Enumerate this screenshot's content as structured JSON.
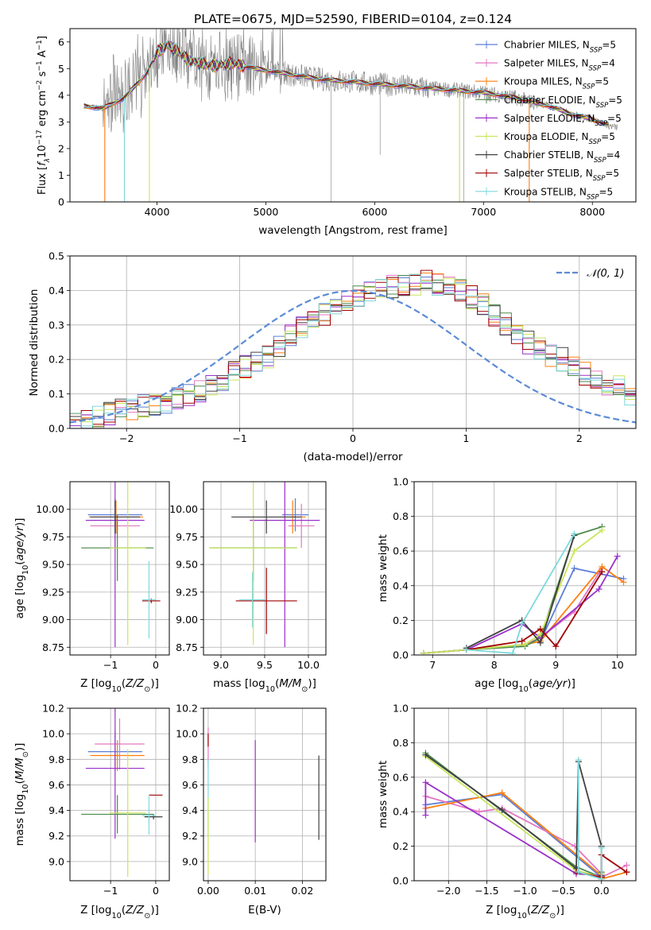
{
  "figure": {
    "title": "PLATE=0675, MJD=52590, FIBERID=0104, z=0.124"
  },
  "legend_entries": [
    {
      "prefix": "Chabrier MILES, N",
      "sub": "SSP",
      "suffix": "=5",
      "color": "#5b7fd6"
    },
    {
      "prefix": "Salpeter MILES, N",
      "sub": "SSP",
      "suffix": "=4",
      "color": "#e377c2"
    },
    {
      "prefix": "Kroupa MILES, N",
      "sub": "SSP",
      "suffix": "=5",
      "color": "#ff7f0e"
    },
    {
      "prefix": "Chabrier ELODIE, N",
      "sub": "SSP",
      "suffix": "=5",
      "color": "#4c8a4c"
    },
    {
      "prefix": "Salpeter ELODIE, N",
      "sub": "SSP",
      "suffix": "=5",
      "color": "#9b30c9"
    },
    {
      "prefix": "Kroupa ELODIE, N",
      "sub": "SSP",
      "suffix": "=5",
      "color": "#c8e65a"
    },
    {
      "prefix": "Chabrier STELIB, N",
      "sub": "SSP",
      "suffix": "=4",
      "color": "#404040"
    },
    {
      "prefix": "Salpeter STELIB, N",
      "sub": "SSP",
      "suffix": "=5",
      "color": "#a00000"
    },
    {
      "prefix": "Kroupa STELIB, N",
      "sub": "SSP",
      "suffix": "=5",
      "color": "#7fd8dc"
    }
  ],
  "chart_data": [
    {
      "type": "line",
      "id": "spectrum",
      "xlabel": "wavelength [Angstrom, rest frame]",
      "ylabel": "Flux [fλ10⁻¹⁷ erg cm⁻² s⁻¹ A⁻¹]",
      "xlim": [
        3200,
        8400
      ],
      "ylim": [
        0,
        6.5
      ],
      "xticks": [
        4000,
        5000,
        6000,
        7000,
        8000
      ],
      "yticks": [
        0,
        1,
        2,
        3,
        4,
        5,
        6
      ],
      "grid": false,
      "legend": "top-right",
      "data_color": "#808080",
      "continuum": {
        "x": [
          3330,
          3500,
          3700,
          3900,
          4000,
          4100,
          4300,
          4500,
          4700,
          4900,
          5200,
          5500,
          5800,
          6100,
          6400,
          6700,
          7000,
          7300,
          7600,
          7800,
          8000,
          8200
        ],
        "y": [
          3.6,
          3.5,
          3.9,
          4.8,
          5.6,
          5.9,
          5.3,
          5.1,
          5.2,
          5.0,
          4.8,
          4.6,
          4.5,
          4.4,
          4.3,
          4.2,
          4.1,
          3.9,
          3.6,
          3.3,
          3.1,
          2.8
        ]
      },
      "absorption_features": [
        {
          "x": 3520,
          "depth": 1.0
        },
        {
          "x": 3700,
          "depth": 1.0
        },
        {
          "x": 3930,
          "depth": 1.0
        },
        {
          "x": 5600,
          "depth": 1.0
        },
        {
          "x": 6050,
          "depth": 0.6
        },
        {
          "x": 6780,
          "depth": 1.0
        },
        {
          "x": 6820,
          "depth": 1.0
        },
        {
          "x": 7420,
          "depth": 1.0
        }
      ]
    },
    {
      "type": "histogram",
      "id": "residuals",
      "xlabel": "(data-model)/error",
      "ylabel": "Normed distribution",
      "xlim": [
        -2.5,
        2.5
      ],
      "ylim": [
        0,
        0.5
      ],
      "xticks": [
        -2,
        -1,
        0,
        1,
        2
      ],
      "yticks": [
        0.0,
        0.1,
        0.2,
        0.3,
        0.4,
        0.5
      ],
      "grid": true,
      "legend": "top-right",
      "reference_curve": {
        "label": "𝒩(0, 1)",
        "color": "#5b8bd6"
      },
      "bin_edges_start": -2.5,
      "bin_width": 0.1,
      "envelope": [
        0.02,
        0.03,
        0.035,
        0.045,
        0.055,
        0.06,
        0.065,
        0.07,
        0.075,
        0.085,
        0.1,
        0.11,
        0.12,
        0.14,
        0.16,
        0.18,
        0.19,
        0.21,
        0.24,
        0.27,
        0.29,
        0.31,
        0.33,
        0.35,
        0.37,
        0.38,
        0.4,
        0.4,
        0.41,
        0.42,
        0.42,
        0.43,
        0.42,
        0.41,
        0.4,
        0.38,
        0.36,
        0.33,
        0.3,
        0.27,
        0.25,
        0.23,
        0.21,
        0.2,
        0.18,
        0.16,
        0.14,
        0.13,
        0.12,
        0.1,
        0.09,
        0.085,
        0.08,
        0.075,
        0.07,
        0.065,
        0.06,
        0.055,
        0.05,
        0.045
      ]
    },
    {
      "type": "scatter",
      "id": "age_vs_Z",
      "xlabel": "Z [log10(Z/Z⊙)]",
      "ylabel": "age  [log10(age/yr)]",
      "xlim": [
        -1.9,
        0.3
      ],
      "ylim": [
        8.68,
        10.25
      ],
      "xticks": [
        -1,
        0
      ],
      "yticks": [
        8.75,
        9.0,
        9.25,
        9.5,
        9.75,
        10.0
      ],
      "grid": true,
      "points": [
        {
          "x": -0.9,
          "y": 9.95,
          "xerr": 0.6,
          "yerr": 0.15,
          "series": 0
        },
        {
          "x": -0.9,
          "y": 9.85,
          "xerr": 0.55,
          "yerr": 0.2,
          "series": 1
        },
        {
          "x": -0.88,
          "y": 9.93,
          "xerr": 0.6,
          "yerr": 0.15,
          "series": 2
        },
        {
          "x": -0.85,
          "y": 9.65,
          "xerr": 0.8,
          "yerr": 0.3,
          "series": 3
        },
        {
          "x": -0.9,
          "y": 9.9,
          "xerr": 0.65,
          "yerr": 1.15,
          "series": 4
        },
        {
          "x": -0.62,
          "y": 9.65,
          "xerr": 0.4,
          "yerr": 0.88,
          "series": 5
        },
        {
          "x": -0.9,
          "y": 9.93,
          "xerr": 0.55,
          "yerr": 0.15,
          "series": 6
        },
        {
          "x": -0.1,
          "y": 9.17,
          "xerr": 0.2,
          "yerr": 0.02,
          "series": 7
        },
        {
          "x": -0.15,
          "y": 9.18,
          "xerr": 0.15,
          "yerr": 0.35,
          "series": 8
        }
      ]
    },
    {
      "type": "scatter",
      "id": "age_vs_mass",
      "xlabel": "mass [log10(M/M⊙)]",
      "ylabel": "",
      "xlim": [
        8.8,
        10.2
      ],
      "ylim": [
        8.68,
        10.25
      ],
      "xticks": [
        9.0,
        9.5,
        10.0
      ],
      "yticks": [
        8.75,
        9.0,
        9.25,
        9.5,
        9.75,
        10.0
      ],
      "grid": true,
      "points": [
        {
          "x": 9.85,
          "y": 9.95,
          "xerr": 0.15,
          "yerr": 0.15,
          "series": 0
        },
        {
          "x": 9.92,
          "y": 9.85,
          "xerr": 0.15,
          "yerr": 0.2,
          "series": 1
        },
        {
          "x": 9.82,
          "y": 9.93,
          "xerr": 0.15,
          "yerr": 0.15,
          "series": 2
        },
        {
          "x": 9.37,
          "y": 9.65,
          "xerr": 0.5,
          "yerr": 0.3,
          "series": 3
        },
        {
          "x": 9.73,
          "y": 9.9,
          "xerr": 0.4,
          "yerr": 1.15,
          "series": 4
        },
        {
          "x": 9.37,
          "y": 9.65,
          "xerr": 0.5,
          "yerr": 0.88,
          "series": 5
        },
        {
          "x": 9.52,
          "y": 9.93,
          "xerr": 0.4,
          "yerr": 0.15,
          "series": 6
        },
        {
          "x": 9.52,
          "y": 9.17,
          "xerr": 0.35,
          "yerr": 0.3,
          "series": 7
        },
        {
          "x": 9.36,
          "y": 9.18,
          "xerr": 0.15,
          "yerr": 0.25,
          "series": 8
        }
      ]
    },
    {
      "type": "line",
      "id": "weight_vs_age",
      "xlabel": "age  [log10(age/yr)]",
      "ylabel": "mass weight",
      "xlim": [
        6.7,
        10.3
      ],
      "ylim": [
        0.0,
        1.0
      ],
      "xticks": [
        7,
        8,
        9,
        10
      ],
      "yticks": [
        0.0,
        0.2,
        0.4,
        0.6,
        0.8,
        1.0
      ],
      "grid": true,
      "series": [
        {
          "x": [
            6.85,
            7.55,
            8.5,
            8.75,
            9.3,
            10.1
          ],
          "y": [
            0.01,
            0.03,
            0.06,
            0.08,
            0.5,
            0.44
          ]
        },
        {
          "x": [
            7.55,
            8.5,
            8.75,
            9.3,
            9.75
          ],
          "y": [
            0.03,
            0.06,
            0.1,
            0.25,
            0.5
          ]
        },
        {
          "x": [
            6.85,
            7.55,
            8.5,
            8.75,
            9.75,
            10.1
          ],
          "y": [
            0.01,
            0.03,
            0.06,
            0.08,
            0.51,
            0.42
          ]
        },
        {
          "x": [
            6.85,
            7.55,
            8.5,
            8.75,
            9.3,
            9.75
          ],
          "y": [
            0.01,
            0.03,
            0.05,
            0.1,
            0.69,
            0.74
          ]
        },
        {
          "x": [
            6.85,
            7.55,
            8.45,
            8.75,
            9.7,
            10.0
          ],
          "y": [
            0.01,
            0.03,
            0.18,
            0.1,
            0.38,
            0.57
          ]
        },
        {
          "x": [
            6.85,
            7.55,
            8.5,
            8.75,
            9.3,
            9.75
          ],
          "y": [
            0.01,
            0.03,
            0.06,
            0.12,
            0.6,
            0.72
          ]
        },
        {
          "x": [
            7.55,
            8.45,
            8.75,
            9.3
          ],
          "y": [
            0.04,
            0.2,
            0.07,
            0.69
          ]
        },
        {
          "x": [
            7.55,
            8.45,
            8.75,
            9.0,
            9.75
          ],
          "y": [
            0.03,
            0.08,
            0.15,
            0.05,
            0.48
          ]
        },
        {
          "x": [
            7.55,
            8.3,
            8.45,
            9.3
          ],
          "y": [
            0.03,
            0.01,
            0.18,
            0.7
          ]
        }
      ]
    },
    {
      "type": "scatter",
      "id": "mass_vs_Z",
      "xlabel": "Z [log10(Z/Z⊙)]",
      "ylabel": "mass [log10(M/M⊙)]",
      "xlim": [
        -1.9,
        0.3
      ],
      "ylim": [
        8.85,
        10.2
      ],
      "xticks": [
        -1,
        0
      ],
      "yticks": [
        9.0,
        9.2,
        9.4,
        9.6,
        9.8,
        10.0,
        10.2
      ],
      "grid": true,
      "points": [
        {
          "x": -0.9,
          "y": 9.86,
          "xerr": 0.6,
          "yerr": 0.15,
          "series": 0
        },
        {
          "x": -0.8,
          "y": 9.92,
          "xerr": 0.55,
          "yerr": 0.2,
          "series": 1
        },
        {
          "x": -0.85,
          "y": 9.83,
          "xerr": 0.6,
          "yerr": 0.12,
          "series": 2
        },
        {
          "x": -0.85,
          "y": 9.37,
          "xerr": 0.8,
          "yerr": 0.15,
          "series": 3
        },
        {
          "x": -0.9,
          "y": 9.73,
          "xerr": 0.65,
          "yerr": 0.55,
          "series": 4
        },
        {
          "x": -0.62,
          "y": 9.38,
          "xerr": 0.4,
          "yerr": 0.5,
          "series": 5
        },
        {
          "x": -0.05,
          "y": 9.35,
          "xerr": 0.2,
          "yerr": 0.02,
          "series": 6
        },
        {
          "x": 0.0,
          "y": 9.52,
          "xerr": 0.15,
          "yerr": 0.0,
          "series": 7
        },
        {
          "x": -0.15,
          "y": 9.36,
          "xerr": 0.15,
          "yerr": 0.15,
          "series": 8
        }
      ]
    },
    {
      "type": "scatter",
      "id": "mass_vs_ebv",
      "xlabel": "E(B-V)",
      "ylabel": "",
      "xlim": [
        -0.001,
        0.025
      ],
      "ylim": [
        8.85,
        10.2
      ],
      "xticks": [
        0.0,
        0.01,
        0.02
      ],
      "yticks": [
        9.0,
        9.2,
        9.4,
        9.6,
        9.8,
        10.0,
        10.2
      ],
      "grid": true,
      "points": [
        {
          "x": 0.0,
          "y": 9.9,
          "xerr": 0,
          "yerr": 0.15,
          "series": 1
        },
        {
          "x": 0.0,
          "y": 9.95,
          "xerr": 0,
          "yerr": 0.05,
          "series": 7
        },
        {
          "x": 0.0,
          "y": 9.5,
          "xerr": 0,
          "yerr": 0.3,
          "series": 8
        },
        {
          "x": 0.0,
          "y": 9.2,
          "xerr": 0,
          "yerr": 0.3,
          "series": 5
        },
        {
          "x": 0.01,
          "y": 9.55,
          "xerr": 0,
          "yerr": 0.4,
          "series": 4
        },
        {
          "x": 0.0235,
          "y": 9.5,
          "xerr": 0,
          "yerr": 0.33,
          "series": 6
        }
      ]
    },
    {
      "type": "line",
      "id": "weight_vs_Z",
      "xlabel": "Z [log10(Z/Z⊙)]",
      "ylabel": "mass weight",
      "xlim": [
        -2.45,
        0.45
      ],
      "ylim": [
        0.0,
        1.0
      ],
      "xticks": [
        -2.0,
        -1.5,
        -1.0,
        -0.5,
        0.0
      ],
      "yticks": [
        0.0,
        0.2,
        0.4,
        0.6,
        0.8,
        1.0
      ],
      "grid": true,
      "series": [
        {
          "x": [
            -2.3,
            -1.3,
            0.0,
            0.0
          ],
          "y": [
            0.44,
            0.5,
            0.02,
            0.04
          ]
        },
        {
          "x": [
            -2.3,
            -1.6,
            -1.3,
            -0.35,
            0.0,
            0.0,
            0.33
          ],
          "y": [
            0.49,
            0.4,
            0.42,
            0.2,
            0.04,
            0.02,
            0.09
          ]
        },
        {
          "x": [
            -2.3,
            -1.3,
            0.0,
            0.0,
            0.33
          ],
          "y": [
            0.42,
            0.51,
            0.03,
            0.01,
            0.05
          ]
        },
        {
          "x": [
            -2.3,
            -0.33,
            0.0,
            0.0
          ],
          "y": [
            0.74,
            0.08,
            0.02,
            0.05
          ]
        },
        {
          "x": [
            -2.3,
            -2.3,
            -0.33,
            0.0
          ],
          "y": [
            0.38,
            0.57,
            0.04,
            0.03
          ]
        },
        {
          "x": [
            -2.3,
            -0.33,
            0.0,
            0.0
          ],
          "y": [
            0.72,
            0.06,
            0.02,
            0.04
          ]
        },
        {
          "x": [
            -2.3,
            -1.3,
            -0.33,
            -0.3,
            0.0,
            0.0
          ],
          "y": [
            0.73,
            0.41,
            0.07,
            0.69,
            0.2,
            0.03
          ]
        },
        {
          "x": [
            -0.33,
            0.0,
            0.0,
            0.33
          ],
          "y": [
            0.05,
            0.02,
            0.15,
            0.05
          ]
        },
        {
          "x": [
            -0.3,
            -0.3,
            0.0,
            0.0
          ],
          "y": [
            0.7,
            0.05,
            0.01,
            0.19
          ]
        }
      ]
    }
  ]
}
